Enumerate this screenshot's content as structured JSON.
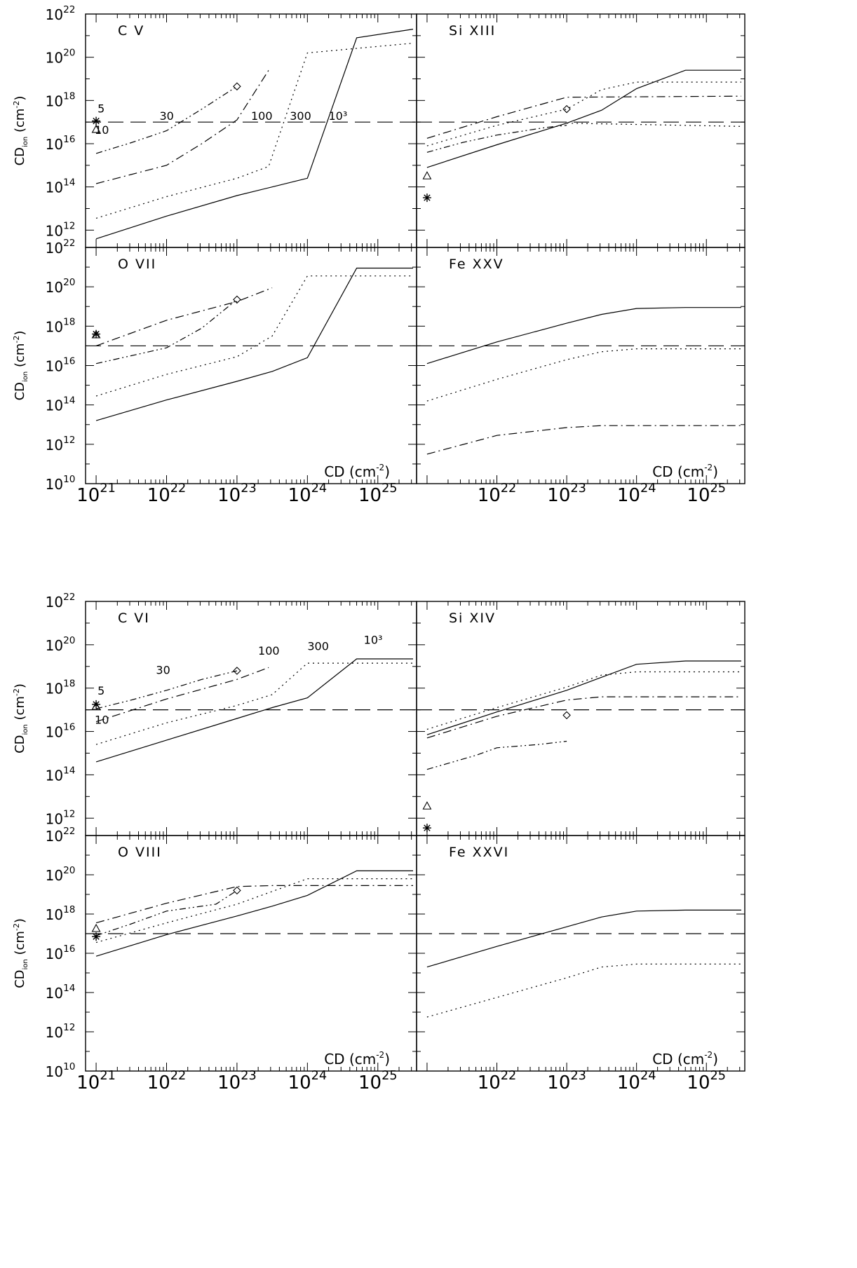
{
  "chart_data": [
    {
      "type": "line",
      "scale": "log-log",
      "ylabel": "CD",
      "ylabel_sub": "ion",
      "ylabel_unit": "(cm",
      "ylabel_exp": "-2",
      "ylabel_close": ")",
      "xlabel": "CD",
      "xlabel_unit": "(cm",
      "xlabel_exp": "-2",
      "xlabel_close": ")",
      "xlim_exp": [
        20.85,
        25.55
      ],
      "x_ticks": [
        {
          "base": "10",
          "exp": "21"
        },
        {
          "base": "10",
          "exp": "22"
        },
        {
          "base": "10",
          "exp": "23"
        },
        {
          "base": "10",
          "exp": "24"
        },
        {
          "base": "10",
          "exp": "25"
        }
      ],
      "right_x_ticks": [
        {
          "base": "10",
          "exp": "22"
        },
        {
          "base": "10",
          "exp": "23"
        },
        {
          "base": "10",
          "exp": "24"
        },
        {
          "base": "10",
          "exp": "25"
        }
      ],
      "y_ticks_top": [
        {
          "base": "10",
          "exp": "22"
        },
        {
          "base": "10",
          "exp": "20"
        },
        {
          "base": "10",
          "exp": "18"
        },
        {
          "base": "10",
          "exp": "16"
        },
        {
          "base": "10",
          "exp": "14"
        },
        {
          "base": "10",
          "exp": "12"
        }
      ],
      "y_ticks_bottom": [
        {
          "base": "10",
          "exp": "22"
        },
        {
          "base": "10",
          "exp": "20"
        },
        {
          "base": "10",
          "exp": "18"
        },
        {
          "base": "10",
          "exp": "16"
        },
        {
          "base": "10",
          "exp": "14"
        },
        {
          "base": "10",
          "exp": "12"
        },
        {
          "base": "10",
          "exp": "10"
        }
      ],
      "panels": [
        {
          "title": "C V",
          "ylim_exp": [
            11.2,
            22
          ],
          "threshold_exp": 17,
          "labels": [
            {
              "text": "5",
              "x": 21.02,
              "y": 17.45
            },
            {
              "text": "10",
              "x": 20.98,
              "y": 16.45
            },
            {
              "text": "30",
              "x": 21.9,
              "y": 17.1
            },
            {
              "text": "100",
              "x": 23.2,
              "y": 17.1
            },
            {
              "text": "300",
              "x": 23.75,
              "y": 17.1
            },
            {
              "text": "10³",
              "x": 24.3,
              "y": 17.1
            }
          ],
          "series": [
            {
              "name": "10³",
              "style": "solid",
              "x": [
                21,
                22,
                23,
                23.5,
                24,
                24.7,
                25.5
              ],
              "y": [
                11.6,
                12.65,
                13.6,
                14,
                14.4,
                20.9,
                21.3
              ]
            },
            {
              "name": "300",
              "style": "dotted",
              "x": [
                21,
                22,
                23,
                23.45,
                24,
                25.5
              ],
              "y": [
                12.55,
                13.55,
                14.4,
                14.95,
                20.2,
                20.65
              ]
            },
            {
              "name": "100",
              "style": "dashdot",
              "x": [
                21,
                22,
                22.5,
                23,
                23.45
              ],
              "y": [
                14.15,
                15,
                16,
                17.1,
                19.4
              ]
            },
            {
              "name": "30",
              "style": "dashdotdot",
              "x": [
                21,
                21.5,
                22,
                22.5,
                23
              ],
              "y": [
                15.55,
                16.05,
                16.6,
                17.6,
                18.65
              ]
            }
          ],
          "markers": [
            {
              "symbol": "star",
              "x": 21,
              "y": 17.05
            },
            {
              "symbol": "triangle",
              "x": 21,
              "y": 16.65
            },
            {
              "symbol": "diamond",
              "x": 23,
              "y": 18.65
            }
          ]
        },
        {
          "title": "Si XIII",
          "ylim_exp": [
            11.2,
            22
          ],
          "threshold_exp": 17,
          "labels": [],
          "series": [
            {
              "style": "solid",
              "x": [
                21,
                22,
                23,
                23.5,
                24,
                24.7,
                25.5
              ],
              "y": [
                14.9,
                15.95,
                16.95,
                17.55,
                18.55,
                19.4,
                19.4
              ]
            },
            {
              "style": "dotted",
              "x": [
                21,
                22,
                23,
                23.5,
                24,
                25.5
              ],
              "y": [
                15.9,
                16.85,
                17.6,
                18.5,
                18.85,
                18.85
              ]
            },
            {
              "style": "dashdot",
              "x": [
                21,
                22,
                23,
                25.5
              ],
              "y": [
                16.25,
                17.25,
                18.15,
                18.2
              ]
            },
            {
              "style": "dotted",
              "x": [
                23,
                25.5
              ],
              "y": [
                16.95,
                16.8
              ]
            },
            {
              "style": "dashdotdot",
              "x": [
                21,
                21.5,
                22,
                22.7,
                23
              ],
              "y": [
                15.6,
                16.05,
                16.4,
                16.75,
                16.85
              ]
            }
          ],
          "markers": [
            {
              "symbol": "triangle",
              "x": 21,
              "y": 14.5
            },
            {
              "symbol": "star",
              "x": 21,
              "y": 13.5
            },
            {
              "symbol": "diamond",
              "x": 23,
              "y": 17.6
            }
          ]
        },
        {
          "title": "O VII",
          "ylim_exp": [
            10,
            22
          ],
          "threshold_exp": 17,
          "labels": [],
          "series": [
            {
              "style": "solid",
              "x": [
                21,
                22,
                23,
                23.5,
                24,
                24.7,
                25.5
              ],
              "y": [
                13.2,
                14.25,
                15.2,
                15.7,
                16.4,
                20.95,
                20.95
              ]
            },
            {
              "style": "dotted",
              "x": [
                21,
                22,
                23,
                23.5,
                24,
                25.5
              ],
              "y": [
                14.45,
                15.55,
                16.45,
                17.5,
                20.55,
                20.55
              ]
            },
            {
              "style": "dashdot",
              "x": [
                21,
                22,
                23,
                23.5
              ],
              "y": [
                17,
                18.3,
                19.25,
                19.95
              ]
            },
            {
              "style": "dashdotdot",
              "x": [
                21,
                22,
                22.5,
                23
              ],
              "y": [
                16.1,
                16.9,
                17.9,
                19.35
              ]
            }
          ],
          "markers": [
            {
              "symbol": "star",
              "x": 21,
              "y": 17.6
            },
            {
              "symbol": "triangle",
              "x": 21,
              "y": 17.55
            },
            {
              "symbol": "diamond",
              "x": 23,
              "y": 19.35
            }
          ]
        },
        {
          "title": "Fe XXV",
          "ylim_exp": [
            10,
            22
          ],
          "threshold_exp": 17,
          "labels": [],
          "series": [
            {
              "style": "solid",
              "x": [
                21,
                22,
                23,
                23.5,
                24,
                24.7,
                25.5
              ],
              "y": [
                16.1,
                17.2,
                18.15,
                18.6,
                18.9,
                18.95,
                18.95
              ]
            },
            {
              "style": "dotted",
              "x": [
                21,
                22,
                23,
                23.5,
                24,
                25.5
              ],
              "y": [
                14.2,
                15.3,
                16.3,
                16.7,
                16.85,
                16.85
              ]
            },
            {
              "style": "dashdot",
              "x": [
                21,
                22,
                23,
                23.5,
                24,
                25.5
              ],
              "y": [
                11.5,
                12.45,
                12.85,
                12.95,
                12.95,
                12.95
              ]
            }
          ],
          "markers": []
        },
        {
          "title": "C VI",
          "ylim_exp": [
            11.2,
            22
          ],
          "threshold_exp": 17,
          "labels": [
            {
              "text": "5",
              "x": 21.02,
              "y": 17.7
            },
            {
              "text": "10",
              "x": 20.98,
              "y": 16.35
            },
            {
              "text": "30",
              "x": 21.85,
              "y": 18.65
            },
            {
              "text": "100",
              "x": 23.3,
              "y": 19.55
            },
            {
              "text": "300",
              "x": 24,
              "y": 19.75
            },
            {
              "text": "10³",
              "x": 24.8,
              "y": 20.05
            }
          ],
          "series": [
            {
              "name": "10³",
              "style": "solid",
              "x": [
                21,
                22,
                23,
                23.5,
                24,
                24.7,
                25.5
              ],
              "y": [
                14.6,
                15.6,
                16.6,
                17.1,
                17.55,
                19.35,
                19.35
              ]
            },
            {
              "name": "300",
              "style": "dotted",
              "x": [
                21,
                22,
                23,
                23.5,
                24,
                25.5
              ],
              "y": [
                15.4,
                16.4,
                17.2,
                17.7,
                19.15,
                19.15
              ]
            },
            {
              "name": "100",
              "style": "dashdot",
              "x": [
                21,
                22,
                23,
                23.45
              ],
              "y": [
                16.45,
                17.5,
                18.4,
                18.95
              ]
            },
            {
              "name": "30",
              "style": "dashdotdot",
              "x": [
                21,
                21.5,
                22,
                22.5,
                23
              ],
              "y": [
                17.05,
                17.45,
                17.9,
                18.4,
                18.8
              ]
            }
          ],
          "markers": [
            {
              "symbol": "star",
              "x": 21,
              "y": 17.25
            },
            {
              "symbol": "triangle",
              "x": 21,
              "y": 17.15
            },
            {
              "symbol": "diamond",
              "x": 23,
              "y": 18.8
            }
          ]
        },
        {
          "title": "Si XIV",
          "ylim_exp": [
            11.2,
            22
          ],
          "threshold_exp": 17,
          "labels": [],
          "series": [
            {
              "style": "solid",
              "x": [
                21,
                22,
                23,
                23.5,
                24,
                24.7,
                25.5
              ],
              "y": [
                15.85,
                16.9,
                17.9,
                18.5,
                19.1,
                19.25,
                19.25
              ]
            },
            {
              "style": "dotted",
              "x": [
                21,
                22,
                23,
                23.5,
                24,
                25.5
              ],
              "y": [
                16.1,
                17.1,
                18.05,
                18.6,
                18.75,
                18.75
              ]
            },
            {
              "style": "dashdot",
              "x": [
                21,
                22,
                23,
                23.5,
                25.5
              ],
              "y": [
                15.7,
                16.7,
                17.45,
                17.6,
                17.6
              ]
            },
            {
              "style": "dashdotdot",
              "x": [
                21,
                21.7,
                22,
                22.6,
                23
              ],
              "y": [
                14.25,
                14.9,
                15.25,
                15.4,
                15.55
              ]
            }
          ],
          "markers": [
            {
              "symbol": "triangle",
              "x": 21,
              "y": 12.55
            },
            {
              "symbol": "star",
              "x": 21,
              "y": 11.55
            },
            {
              "symbol": "diamond",
              "x": 23,
              "y": 16.75
            }
          ]
        },
        {
          "title": "O VIII",
          "ylim_exp": [
            10,
            22
          ],
          "threshold_exp": 17,
          "labels": [],
          "series": [
            {
              "style": "solid",
              "x": [
                21,
                22,
                23,
                23.5,
                24,
                24.7,
                25.5
              ],
              "y": [
                15.85,
                16.95,
                17.9,
                18.4,
                18.95,
                20.2,
                20.2
              ]
            },
            {
              "style": "dotted",
              "x": [
                21,
                22,
                23,
                23.5,
                24,
                25.5
              ],
              "y": [
                16.55,
                17.55,
                18.5,
                19.15,
                19.8,
                19.8
              ]
            },
            {
              "style": "dashdot",
              "x": [
                21,
                22,
                23,
                23.5,
                25.5
              ],
              "y": [
                17.55,
                18.55,
                19.4,
                19.45,
                19.45
              ]
            },
            {
              "style": "dashdotdot",
              "x": [
                21,
                21.5,
                22,
                22.7,
                23
              ],
              "y": [
                16.9,
                17.5,
                18.15,
                18.5,
                19.2
              ]
            }
          ],
          "markers": [
            {
              "symbol": "triangle",
              "x": 21,
              "y": 17.25
            },
            {
              "symbol": "star",
              "x": 21,
              "y": 16.85
            },
            {
              "symbol": "diamond",
              "x": 23,
              "y": 19.2
            }
          ]
        },
        {
          "title": "Fe XXVI",
          "ylim_exp": [
            10,
            22
          ],
          "threshold_exp": 17,
          "labels": [],
          "series": [
            {
              "style": "solid",
              "x": [
                21,
                22,
                23,
                23.5,
                24,
                24.7,
                25.5
              ],
              "y": [
                15.3,
                16.35,
                17.35,
                17.85,
                18.15,
                18.2,
                18.2
              ]
            },
            {
              "style": "dotted",
              "x": [
                21,
                22,
                23,
                23.5,
                24,
                25.5
              ],
              "y": [
                12.75,
                13.75,
                14.75,
                15.3,
                15.45,
                15.45
              ]
            }
          ],
          "markers": []
        }
      ]
    }
  ]
}
